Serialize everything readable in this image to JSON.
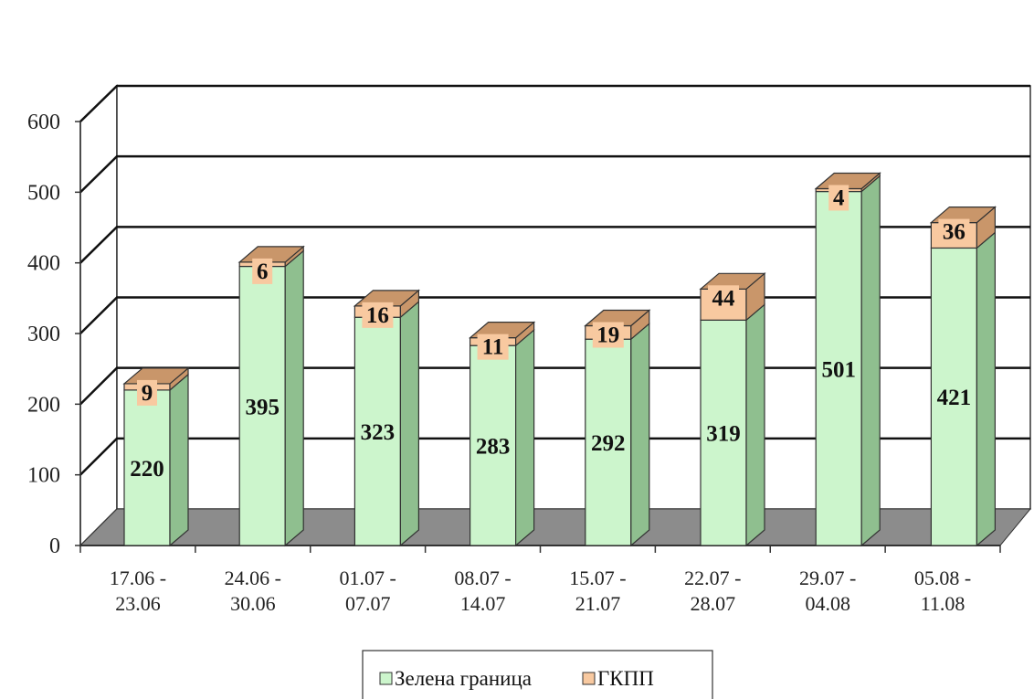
{
  "chart_data": {
    "type": "bar",
    "stacked": true,
    "three_d": true,
    "categories": [
      [
        "17.06 -",
        "23.06"
      ],
      [
        "24.06 -",
        "30.06"
      ],
      [
        "01.07 -",
        "07.07"
      ],
      [
        "08.07 -",
        "14.07"
      ],
      [
        "15.07 -",
        "21.07"
      ],
      [
        "22.07 -",
        "28.07"
      ],
      [
        "29.07 -",
        "04.08"
      ],
      [
        "05.08 -",
        "11.08"
      ]
    ],
    "series": [
      {
        "name": "Зелена граница",
        "color": "#ccf5cc",
        "side_color": "#8fbf8f",
        "values": [
          220,
          395,
          323,
          283,
          292,
          319,
          501,
          421
        ]
      },
      {
        "name": "ГКПП",
        "color": "#f8c9a0",
        "side_color": "#c9966a",
        "values": [
          9,
          6,
          16,
          11,
          19,
          44,
          4,
          36
        ]
      }
    ],
    "ylim": [
      0,
      600
    ],
    "yticks": [
      0,
      100,
      200,
      300,
      400,
      500,
      600
    ],
    "grid": true,
    "legend": "bottom",
    "floor_color": "#8c8c8c"
  }
}
